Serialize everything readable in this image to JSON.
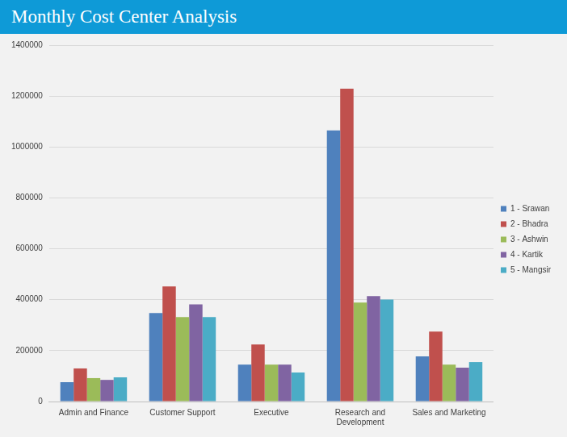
{
  "chart_data": {
    "type": "bar",
    "title": "Monthly Cost Center Analysis",
    "categories": [
      "Admin and Finance",
      "Customer Support",
      "Executive",
      "Research and Development",
      "Sales and Marketing"
    ],
    "series": [
      {
        "name": "1 - Srawan",
        "color": "#4f81bd",
        "values": [
          76000,
          348000,
          145000,
          1065000,
          177000
        ]
      },
      {
        "name": "2 - Bhadra",
        "color": "#c0504d",
        "values": [
          130000,
          452000,
          224000,
          1229000,
          275000
        ]
      },
      {
        "name": "3 - Ashwin",
        "color": "#9bbb59",
        "values": [
          92000,
          332000,
          145000,
          389000,
          145000
        ]
      },
      {
        "name": "4 - Kartik",
        "color": "#8064a2",
        "values": [
          85000,
          382000,
          145000,
          414000,
          133000
        ]
      },
      {
        "name": "5 - Mangsir",
        "color": "#4bacc6",
        "values": [
          95000,
          332000,
          114000,
          401000,
          155000
        ]
      }
    ],
    "ylim": [
      0,
      1400000
    ],
    "yticks": [
      0,
      200000,
      400000,
      600000,
      800000,
      1000000,
      1200000,
      1400000
    ],
    "grid": true,
    "legend": "right"
  }
}
